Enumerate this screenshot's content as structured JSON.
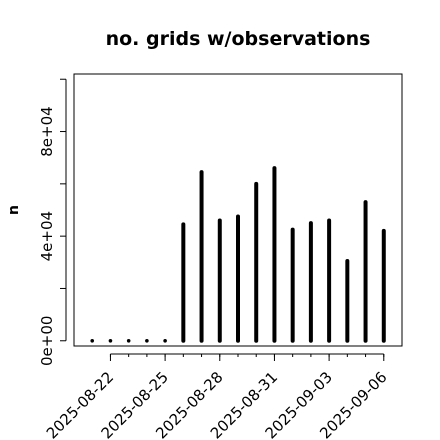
{
  "chart_data": {
    "type": "bar",
    "title": "no. grids w/observations",
    "xlabel": "",
    "ylabel": "n",
    "x": [
      "2025-08-21",
      "2025-08-22",
      "2025-08-23",
      "2025-08-24",
      "2025-08-25",
      "2025-08-26",
      "2025-08-27",
      "2025-08-28",
      "2025-08-29",
      "2025-08-30",
      "2025-08-31",
      "2025-09-01",
      "2025-09-02",
      "2025-09-03",
      "2025-09-04",
      "2025-09-05",
      "2025-09-06"
    ],
    "values": [
      0,
      0,
      0,
      0,
      0,
      44500,
      64500,
      46000,
      47500,
      60000,
      66000,
      42500,
      45000,
      46000,
      30500,
      53000,
      42000
    ],
    "ylim": [
      -2000,
      102000
    ],
    "xlim": [
      "2025-08-20",
      "2025-09-07"
    ],
    "yticks": [
      0,
      40000,
      80000
    ],
    "ytick_labels": [
      "0e+00",
      "4e+04",
      "8e+04"
    ],
    "xticks": [
      "2025-08-22",
      "2025-08-25",
      "2025-08-28",
      "2025-08-31",
      "2025-09-03",
      "2025-09-06"
    ],
    "xtick_labels": [
      "2025-08-22",
      "2025-08-25",
      "2025-08-28",
      "2025-08-31",
      "2025-09-03",
      "2025-09-06"
    ],
    "highlight_xtick": "2025-08-28",
    "bar_color": "#000000",
    "highlight_color": "#228B22",
    "grid": false,
    "legend": "none"
  }
}
